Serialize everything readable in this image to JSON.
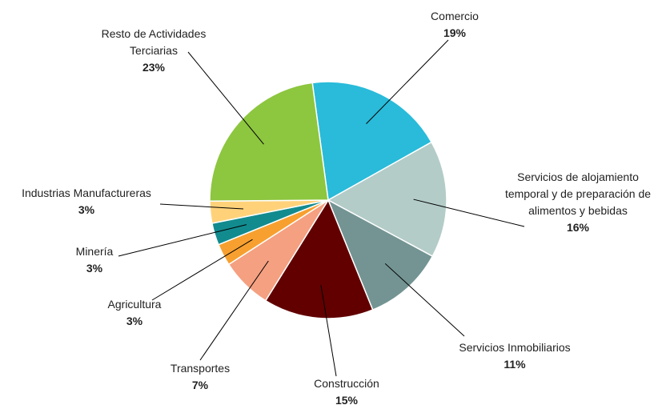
{
  "chart_data": {
    "type": "pie",
    "categories": [
      "Comercio",
      "Servicios de alojamiento temporal y de preparación de alimentos y bebidas",
      "Servicios Inmobiliarios",
      "Construcción",
      "Transportes",
      "Agricultura",
      "Minería",
      "Industrias Manufactureras",
      "Resto de Actividades Terciarias"
    ],
    "values": [
      19,
      16,
      11,
      15,
      7,
      3,
      3,
      3,
      23
    ],
    "value_labels": [
      "19%",
      "16%",
      "11%",
      "15%",
      "7%",
      "3%",
      "3%",
      "3%",
      "23%"
    ],
    "colors": [
      "#29bbd9",
      "#b3ccc7",
      "#739493",
      "#620000",
      "#f5a080",
      "#f7a030",
      "#128b8f",
      "#ffd27a",
      "#8dc63f"
    ]
  }
}
